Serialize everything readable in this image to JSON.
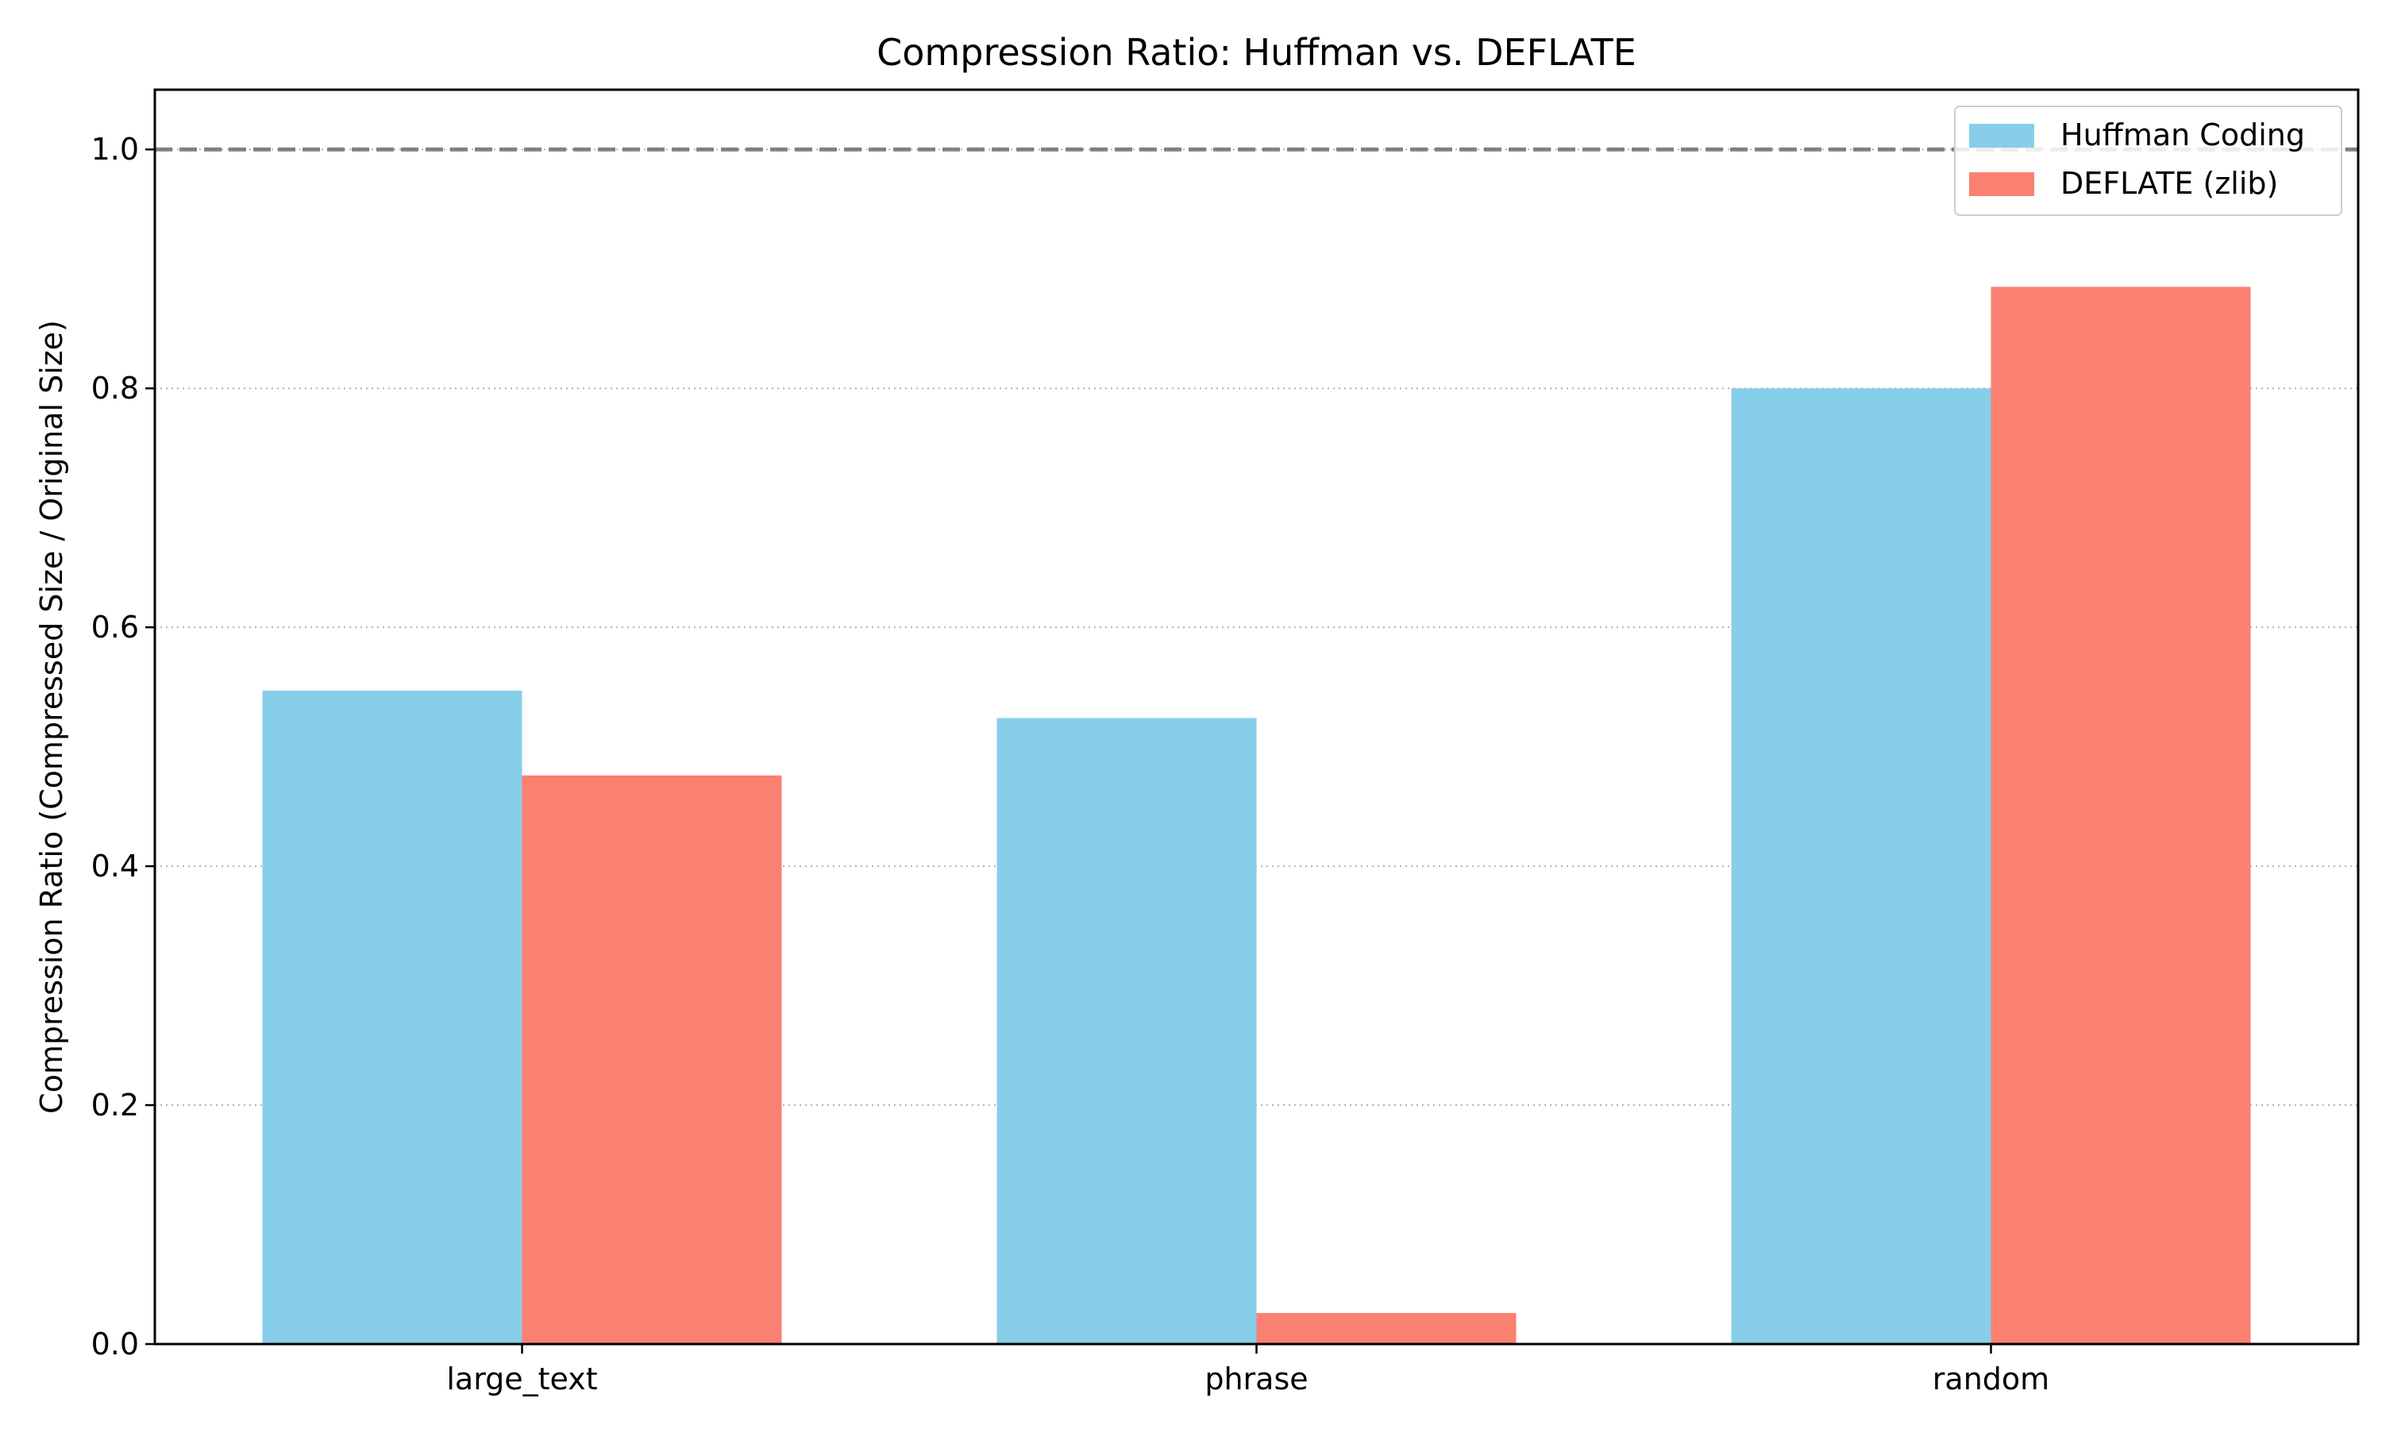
{
  "chart_data": {
    "type": "bar",
    "title": "Compression Ratio: Huffman vs. DEFLATE",
    "xlabel": "",
    "ylabel": "Compression Ratio (Compressed Size / Original Size)",
    "categories": [
      "large_text",
      "phrase",
      "random"
    ],
    "series": [
      {
        "name": "Huffman Coding",
        "color": "#87ceeb",
        "values": [
          0.547,
          0.524,
          0.8
        ]
      },
      {
        "name": "DEFLATE (zlib)",
        "color": "#fa8072",
        "values": [
          0.476,
          0.026,
          0.885
        ]
      }
    ],
    "ylim": [
      0,
      1.05
    ],
    "yticks": [
      "0.0",
      "0.2",
      "0.4",
      "0.6",
      "0.8",
      "1.0"
    ],
    "reference_line": {
      "value": 1.0,
      "style": "dashed",
      "color": "#808080"
    },
    "grid": "y-dotted",
    "legend_position": "top-right"
  }
}
